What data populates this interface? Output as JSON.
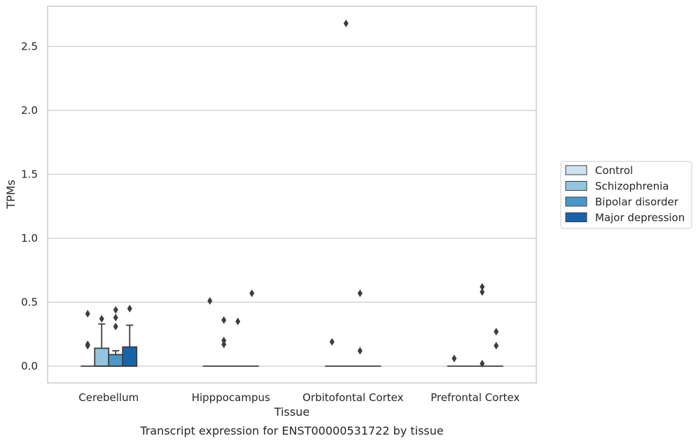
{
  "chart_data": {
    "type": "box",
    "title": "",
    "caption": "Transcript expression for ENST00000531722 by tissue",
    "xlabel": "Tissue",
    "ylabel": "TPMs",
    "ylim": [
      -0.13,
      2.82
    ],
    "yticks": [
      "0.0",
      "0.5",
      "1.0",
      "1.5",
      "2.0",
      "2.5"
    ],
    "grid": "horizontal",
    "legend_position": "right",
    "categories": [
      "Cerebellum",
      "Hipppocampus",
      "Orbitofontal Cortex",
      "Prefrontal Cortex"
    ],
    "series": [
      {
        "name": "Control",
        "color": "#d0e1f2",
        "boxes": [
          {
            "category": "Cerebellum",
            "q1": 0.0,
            "median": 0.0,
            "q3": 0.0,
            "whisker_low": 0.0,
            "whisker_high": 0.0,
            "outliers": [
              0.41,
              0.17,
              0.16
            ]
          },
          {
            "category": "Hipppocampus",
            "q1": 0.0,
            "median": 0.0,
            "q3": 0.0,
            "whisker_low": 0.0,
            "whisker_high": 0.0,
            "outliers": [
              0.51
            ]
          },
          {
            "category": "Orbitofontal Cortex",
            "q1": 0.0,
            "median": 0.0,
            "q3": 0.0,
            "whisker_low": 0.0,
            "whisker_high": 0.0,
            "outliers": [
              0.19
            ]
          },
          {
            "category": "Prefrontal Cortex",
            "q1": 0.0,
            "median": 0.0,
            "q3": 0.0,
            "whisker_low": 0.0,
            "whisker_high": 0.0,
            "outliers": [
              0.06
            ]
          }
        ]
      },
      {
        "name": "Schizophrenia",
        "color": "#94c4df",
        "boxes": [
          {
            "category": "Cerebellum",
            "q1": 0.0,
            "median": 0.0,
            "q3": 0.14,
            "whisker_low": 0.0,
            "whisker_high": 0.33,
            "outliers": [
              0.37
            ]
          },
          {
            "category": "Hipppocampus",
            "q1": 0.0,
            "median": 0.0,
            "q3": 0.0,
            "whisker_low": 0.0,
            "whisker_high": 0.0,
            "outliers": [
              0.36,
              0.2,
              0.17
            ]
          },
          {
            "category": "Orbitofontal Cortex",
            "q1": 0.0,
            "median": 0.0,
            "q3": 0.0,
            "whisker_low": 0.0,
            "whisker_high": 0.0,
            "outliers": [
              2.68
            ]
          },
          {
            "category": "Prefrontal Cortex",
            "q1": 0.0,
            "median": 0.0,
            "q3": 0.0,
            "whisker_low": 0.0,
            "whisker_high": 0.0,
            "outliers": []
          }
        ]
      },
      {
        "name": "Bipolar disorder",
        "color": "#4a98c9",
        "boxes": [
          {
            "category": "Cerebellum",
            "q1": 0.0,
            "median": 0.0,
            "q3": 0.09,
            "whisker_low": 0.0,
            "whisker_high": 0.12,
            "outliers": [
              0.44,
              0.38,
              0.31
            ]
          },
          {
            "category": "Hipppocampus",
            "q1": 0.0,
            "median": 0.0,
            "q3": 0.0,
            "whisker_low": 0.0,
            "whisker_high": 0.0,
            "outliers": [
              0.35
            ]
          },
          {
            "category": "Orbitofontal Cortex",
            "q1": 0.0,
            "median": 0.0,
            "q3": 0.0,
            "whisker_low": 0.0,
            "whisker_high": 0.0,
            "outliers": [
              0.57,
              0.12
            ]
          },
          {
            "category": "Prefrontal Cortex",
            "q1": 0.0,
            "median": 0.0,
            "q3": 0.0,
            "whisker_low": 0.0,
            "whisker_high": 0.0,
            "outliers": [
              0.62,
              0.58,
              0.02
            ]
          }
        ]
      },
      {
        "name": "Major depression",
        "color": "#1764ab",
        "boxes": [
          {
            "category": "Cerebellum",
            "q1": 0.0,
            "median": 0.0,
            "q3": 0.15,
            "whisker_low": 0.0,
            "whisker_high": 0.32,
            "outliers": [
              0.45
            ]
          },
          {
            "category": "Hipppocampus",
            "q1": 0.0,
            "median": 0.0,
            "q3": 0.0,
            "whisker_low": 0.0,
            "whisker_high": 0.0,
            "outliers": [
              0.57
            ]
          },
          {
            "category": "Orbitofontal Cortex",
            "q1": 0.0,
            "median": 0.0,
            "q3": 0.0,
            "whisker_low": 0.0,
            "whisker_high": 0.0,
            "outliers": []
          },
          {
            "category": "Prefrontal Cortex",
            "q1": 0.0,
            "median": 0.0,
            "q3": 0.0,
            "whisker_low": 0.0,
            "whisker_high": 0.0,
            "outliers": [
              0.27,
              0.16
            ]
          }
        ]
      }
    ]
  }
}
